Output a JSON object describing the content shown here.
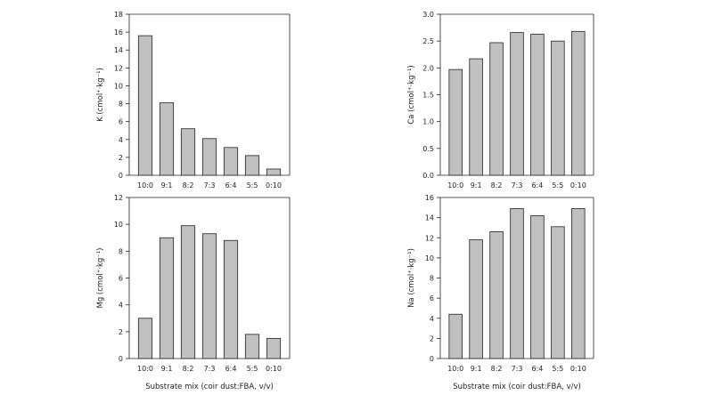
{
  "chart_data": [
    {
      "type": "bar",
      "categories": [
        "10:0",
        "9:1",
        "8:2",
        "7:3",
        "6:4",
        "5:5",
        "0:10"
      ],
      "values": [
        15.6,
        8.1,
        5.2,
        4.1,
        3.1,
        2.2,
        0.7
      ],
      "ylabel": "K (cmol⁺·kg⁻¹)",
      "xlabel": "",
      "ylim": [
        0,
        18
      ],
      "yticks": [
        0,
        2,
        4,
        6,
        8,
        10,
        12,
        14,
        16,
        18
      ],
      "ytick_labels": [
        "0",
        "2",
        "4",
        "6",
        "8",
        "10",
        "12",
        "14",
        "16",
        "18"
      ]
    },
    {
      "type": "bar",
      "categories": [
        "10:0",
        "9:1",
        "8:2",
        "7:3",
        "6:4",
        "5:5",
        "0:10"
      ],
      "values": [
        1.97,
        2.17,
        2.47,
        2.66,
        2.63,
        2.5,
        2.68
      ],
      "ylabel": "Ca (cmol⁺·kg⁻¹)",
      "xlabel": "",
      "ylim": [
        0,
        3
      ],
      "yticks": [
        0,
        0.5,
        1,
        1.5,
        2,
        2.5,
        3
      ],
      "ytick_labels": [
        "0.0",
        "0.5",
        "1.0",
        "1.5",
        "2.0",
        "2.5",
        "3.0"
      ]
    },
    {
      "type": "bar",
      "categories": [
        "10:0",
        "9:1",
        "8:2",
        "7:3",
        "6:4",
        "5:5",
        "0:10"
      ],
      "values": [
        3.0,
        9.0,
        9.9,
        9.3,
        8.8,
        1.8,
        1.5
      ],
      "ylabel": "Mg (cmol⁺·kg⁻¹)",
      "xlabel": "Substrate mix (coir dust:FBA, v/v)",
      "ylim": [
        0,
        12
      ],
      "yticks": [
        0,
        2,
        4,
        6,
        8,
        10,
        12
      ],
      "ytick_labels": [
        "0",
        "2",
        "4",
        "6",
        "8",
        "10",
        "12"
      ]
    },
    {
      "type": "bar",
      "categories": [
        "10:0",
        "9:1",
        "8:2",
        "7:3",
        "6:4",
        "5:5",
        "0:10"
      ],
      "values": [
        4.4,
        11.8,
        12.6,
        14.9,
        14.2,
        13.1,
        14.9
      ],
      "ylabel": "Na (cmol⁺·kg⁻¹)",
      "xlabel": "Substrate mix (coir dust:FBA, v/v)",
      "ylim": [
        0,
        16
      ],
      "yticks": [
        0,
        2,
        4,
        6,
        8,
        10,
        12,
        14,
        16
      ],
      "ytick_labels": [
        "0",
        "2",
        "4",
        "6",
        "8",
        "10",
        "12",
        "14",
        "16"
      ]
    }
  ]
}
